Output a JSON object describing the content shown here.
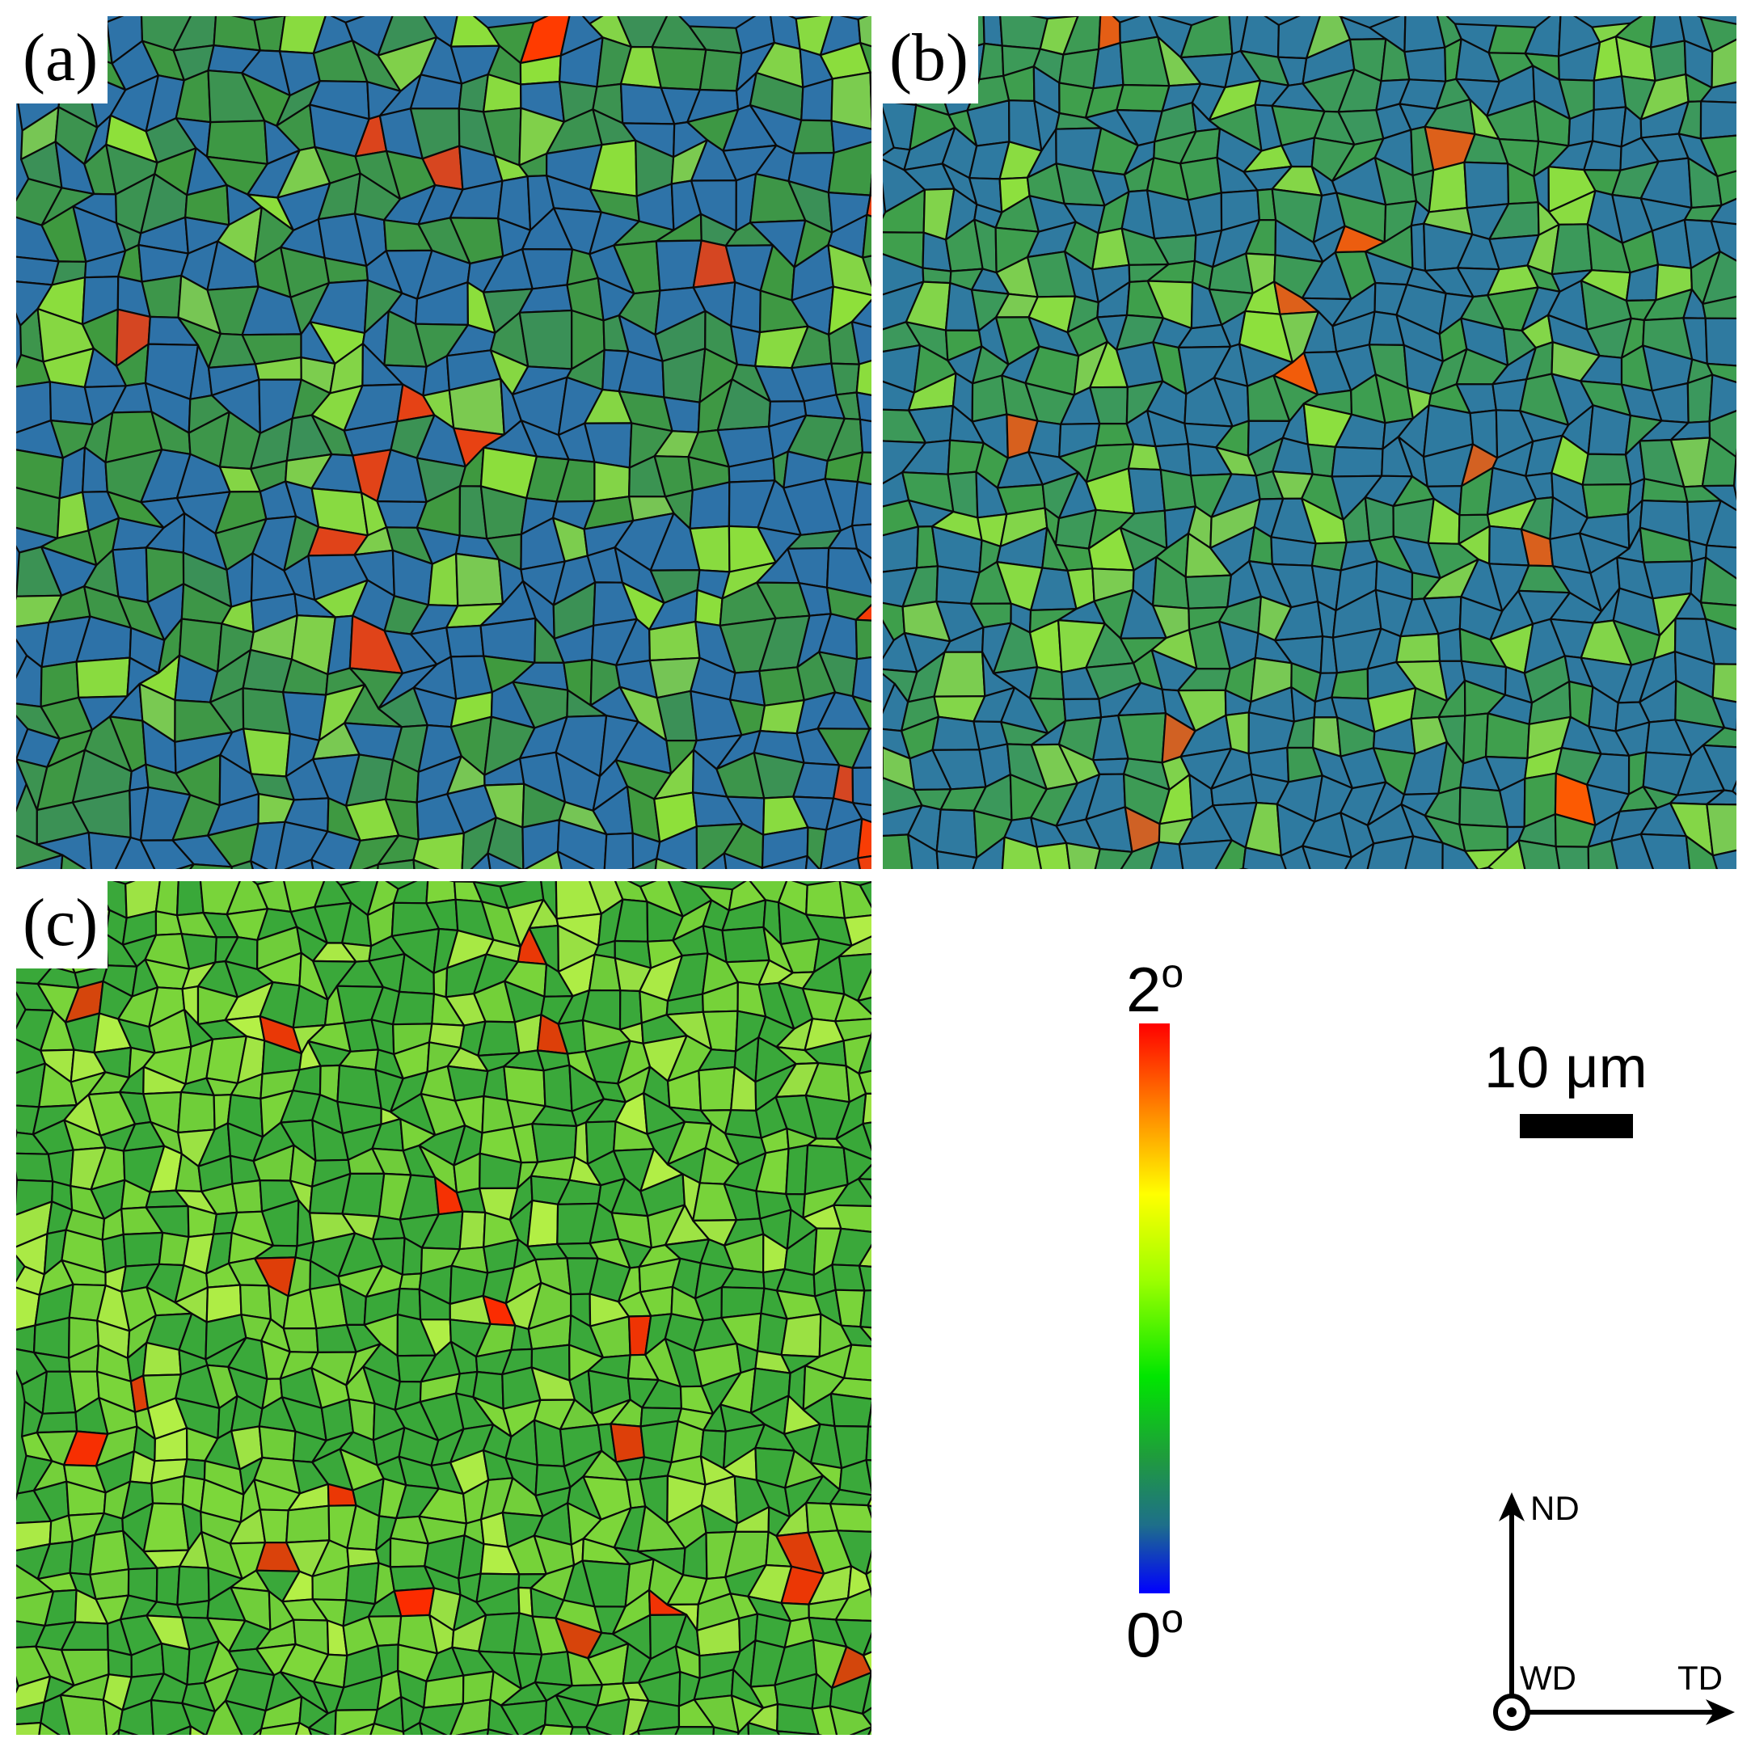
{
  "panels": [
    {
      "label": "(a)",
      "base": "#2e73a8",
      "alt": "#3f9a3e",
      "accent": "#8ee03a",
      "hot": "#ff3b00"
    },
    {
      "label": "(b)",
      "base": "#2f7aa0",
      "alt": "#3fa04a",
      "accent": "#8fe23c",
      "hot": "#ff5a00"
    },
    {
      "label": "(c)",
      "base": "#3aa83a",
      "alt": "#7fd83a",
      "accent": "#b4f046",
      "hot": "#ff2a00"
    }
  ],
  "colorbar": {
    "max_label": "2",
    "min_label": "0",
    "unit_symbol": "o",
    "colors": [
      "#ff0000",
      "#ff8c00",
      "#ffff00",
      "#00e600",
      "#1e6f8a",
      "#0000ff"
    ]
  },
  "scale": {
    "label": "10 μm"
  },
  "axes": {
    "nd": "ND",
    "td": "TD",
    "wd": "WD"
  }
}
